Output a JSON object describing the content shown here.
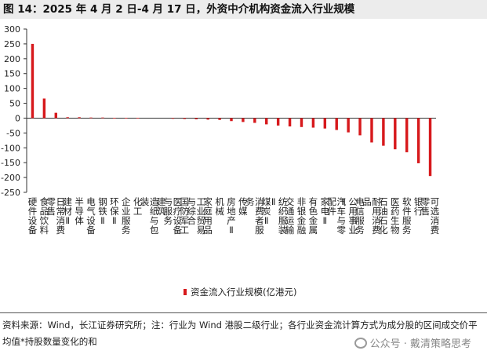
{
  "title": "图 14：2025 年 4 月 2 日-4 月 17 日，外资中介机构资金流入行业规模",
  "source_note": "资料来源：Wind，长江证券研究所；注：行业为 Wind 港股二级行业；各行业资金流计算方式为成分股的区间成交价平均值*持股数量变化的和",
  "watermark": "公众号 · 戴清策略思考",
  "colors": {
    "bar": "#d7191c",
    "axis": "#333333"
  },
  "chart_data": {
    "type": "bar",
    "title": "2025 年 4 月 2 日-4 月 17 日，外资中介机构资金流入行业规模",
    "categories": [
      "硬件设备",
      "食品饮料",
      "日常消费零售",
      "建材Ⅱ",
      "半导体",
      "电气设备",
      "钢铁Ⅱ",
      "环保Ⅱ",
      "企业服务",
      "化工",
      "造纸与包装",
      "建筑",
      "医疗设备与服务",
      "国防军工",
      "工业贸易与综合",
      "家庭用品",
      "机械",
      "房地产Ⅱ",
      "传媒",
      "消费者服务",
      "煤炭Ⅱ",
      "纺织服装Ⅱ",
      "交通运输",
      "非银金融",
      "有色金属",
      "家电Ⅱ",
      "汽车与零配件",
      "公用事业Ⅱ",
      "电信服务",
      "耐用消费品",
      "石油石化",
      "医药生物",
      "软件服务",
      "银行",
      "可选消费零售"
    ],
    "series": [
      {
        "name": "资金流入行业规模(亿港元)",
        "values": [
          250,
          66,
          18,
          3,
          3,
          2,
          2,
          1,
          1,
          1,
          0,
          0,
          -2,
          -3,
          -4,
          -5,
          -6,
          -10,
          -13,
          -16,
          -21,
          -25,
          -28,
          -30,
          -32,
          -35,
          -40,
          -48,
          -58,
          -82,
          -93,
          -105,
          -115,
          -152,
          -195
        ]
      }
    ],
    "ylim": [
      -250,
      300
    ],
    "yticks": [
      -250,
      -200,
      -150,
      -100,
      -50,
      0,
      50,
      100,
      150,
      200,
      250,
      300
    ],
    "xlabel": "",
    "ylabel": "",
    "legend": "资金流入行业规模(亿港元)",
    "legend_position": "bottom-center"
  }
}
